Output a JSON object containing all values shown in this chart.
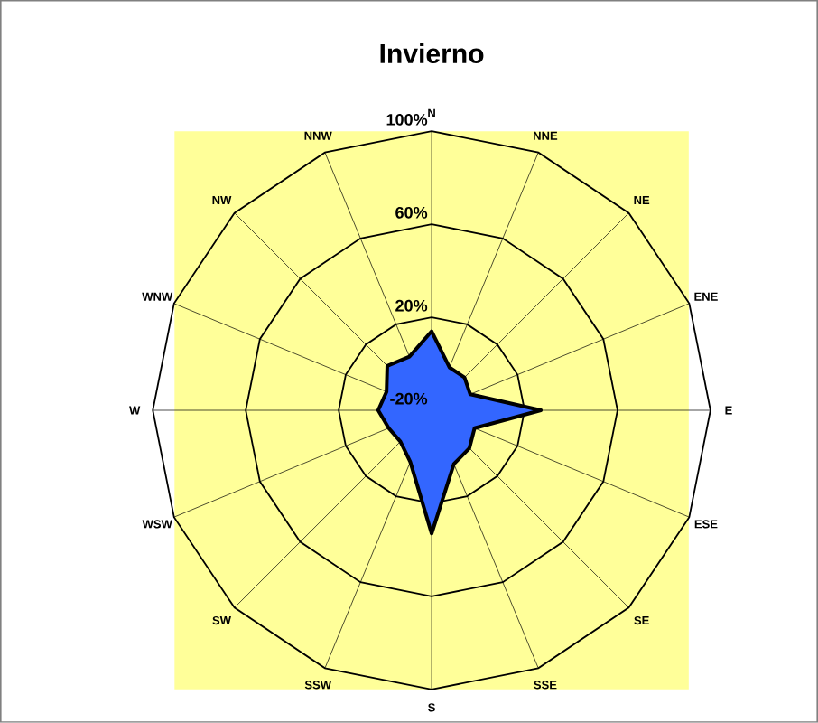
{
  "chart_data": {
    "type": "radar",
    "title": "Invierno",
    "categories": [
      "N",
      "NNE",
      "NE",
      "ENE",
      "E",
      "ESE",
      "SE",
      "SSE",
      "S",
      "SSW",
      "SW",
      "WSW",
      "W",
      "WNW",
      "NW",
      "NNW"
    ],
    "series": [
      {
        "color": "#3366ff",
        "values": [
          14,
          0,
          0,
          -2,
          27,
          0,
          3,
          5,
          33,
          4,
          -1,
          0,
          3,
          1,
          7,
          5
        ]
      }
    ],
    "ylim": [
      -20,
      100
    ],
    "yticks": [
      {
        "value": -20,
        "label": "-20%"
      },
      {
        "value": 20,
        "label": "20%"
      },
      {
        "value": 60,
        "label": "60%"
      },
      {
        "value": 100,
        "label": "100%"
      }
    ],
    "grid": true
  }
}
